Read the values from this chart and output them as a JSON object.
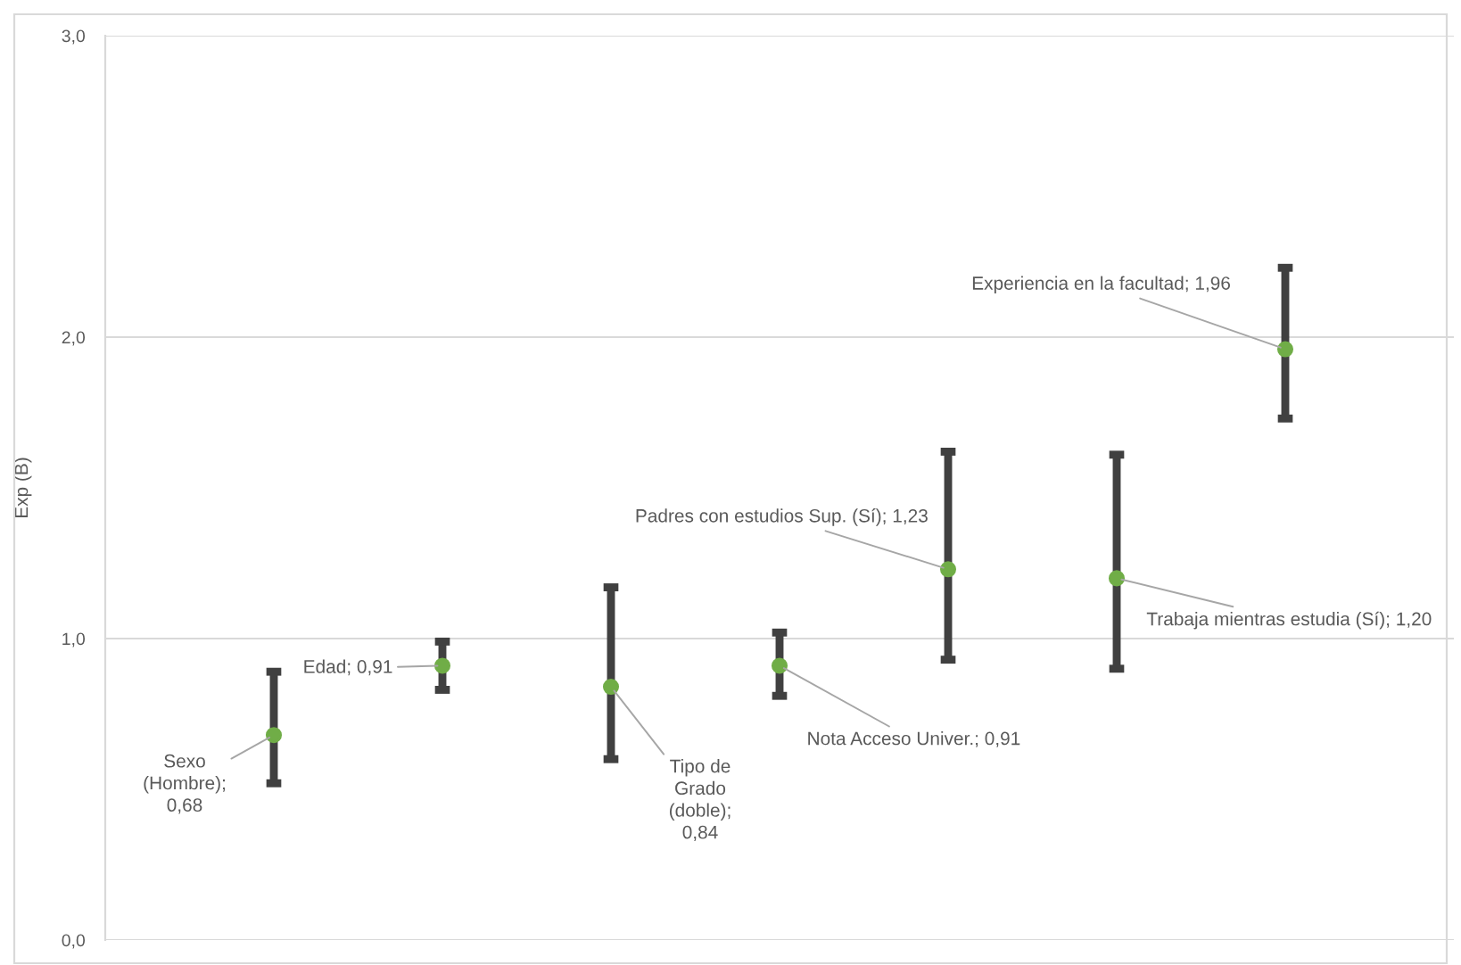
{
  "chart_data": {
    "type": "scatter",
    "ylabel": "Exp (B)",
    "categories": [
      null,
      null,
      null,
      null,
      null,
      null,
      null
    ],
    "series": [
      {
        "color": "#70ad47",
        "values": [
          0.68,
          0.91,
          0.84,
          0.91,
          1.23,
          1.2,
          1.96
        ],
        "errors": [
          [
            0.52,
            0.89
          ],
          [
            0.83,
            0.99
          ],
          [
            0.6,
            1.17
          ],
          [
            0.81,
            1.02
          ],
          [
            0.93,
            1.62
          ],
          [
            0.9,
            1.61
          ],
          [
            1.73,
            2.23
          ]
        ],
        "value_labels": [
          "Sexo\n(Hombre);\n0,68",
          "Edad; 0,91",
          "Tipo de\nGrado\n(doble);\n0,84",
          "Nota Acceso Univer.; 0,91",
          "Padres con estudios Sup. (Sí); 1,23",
          "Trabaja mientras estudia (Sí); 1,20",
          "Experiencia en la facultad; 1,96"
        ]
      }
    ],
    "ylim": [
      0,
      3
    ],
    "yticks": [
      {
        "value": 0,
        "label": "0,0"
      },
      {
        "value": 1,
        "label": "1,0"
      },
      {
        "value": 2,
        "label": "2,0"
      },
      {
        "value": 3,
        "label": "3,0"
      }
    ],
    "grid": "y",
    "marker": "circle",
    "legend": false
  }
}
